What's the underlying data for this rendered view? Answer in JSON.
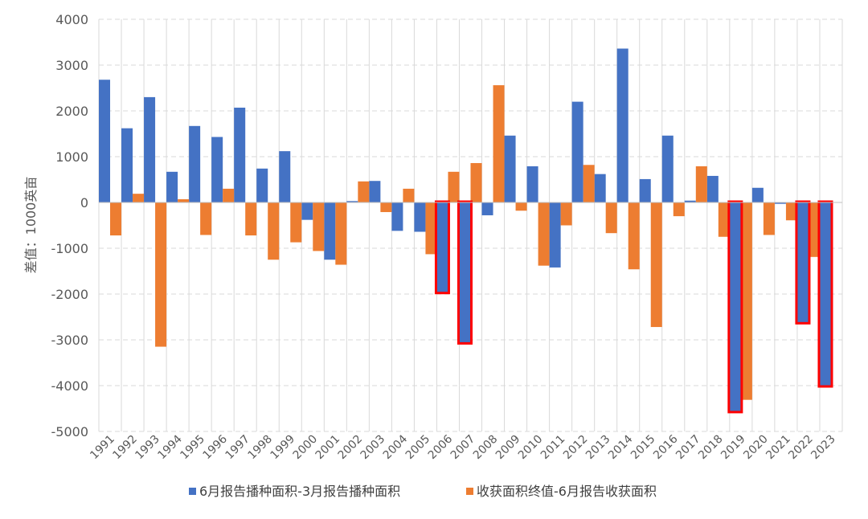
{
  "chart_data": {
    "type": "bar",
    "ylabel": "差值：1000英亩",
    "ylim": [
      -5000,
      4000
    ],
    "yticks": [
      4000,
      3000,
      2000,
      1000,
      0,
      -1000,
      -2000,
      -3000,
      -4000,
      -5000
    ],
    "grid": "dashed-both",
    "legend_position": "bottom",
    "categories": [
      "1991",
      "1992",
      "1993",
      "1994",
      "1995",
      "1996",
      "1997",
      "1998",
      "1999",
      "2000",
      "2001",
      "2002",
      "2003",
      "2004",
      "2005",
      "2006",
      "2007",
      "2008",
      "2009",
      "2010",
      "2011",
      "2012",
      "2013",
      "2014",
      "2015",
      "2016",
      "2017",
      "2018",
      "2019",
      "2020",
      "2021",
      "2022",
      "2023"
    ],
    "series": [
      {
        "name": "6月报告播种面积-3月报告播种面积",
        "color": "#4472C4",
        "values": [
          2680,
          1620,
          2300,
          670,
          1670,
          1430,
          2070,
          740,
          1120,
          -380,
          -1250,
          30,
          470,
          -620,
          -640,
          -1960,
          -3060,
          -280,
          1460,
          790,
          -1420,
          2200,
          620,
          3360,
          510,
          1460,
          40,
          580,
          -4560,
          320,
          -30,
          -2620,
          -4000
        ]
      },
      {
        "name": "收获面积终值-6月报告收获面积",
        "color": "#ED7D31",
        "values": [
          -720,
          190,
          -3150,
          70,
          -710,
          300,
          -720,
          -1250,
          -870,
          -1060,
          -1360,
          460,
          -210,
          300,
          -1130,
          670,
          860,
          2560,
          -180,
          -1380,
          -500,
          820,
          -670,
          -1460,
          -2720,
          -300,
          790,
          -750,
          -4310,
          -710,
          -390,
          -1190,
          0
        ]
      }
    ],
    "highlighted_categories": [
      "2006",
      "2007",
      "2019",
      "2022",
      "2023"
    ],
    "highlight_color": "#FF0000"
  }
}
